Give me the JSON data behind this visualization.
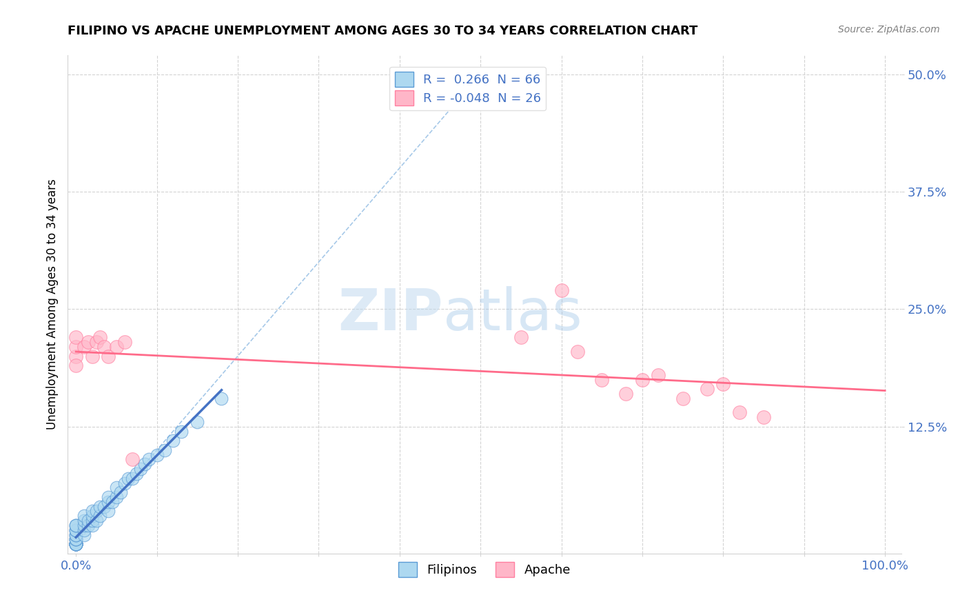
{
  "title": "FILIPINO VS APACHE UNEMPLOYMENT AMONG AGES 30 TO 34 YEARS CORRELATION CHART",
  "source": "Source: ZipAtlas.com",
  "ylabel_label": "Unemployment Among Ages 30 to 34 years",
  "xlim": [
    0,
    1.0
  ],
  "ylim": [
    0,
    0.5
  ],
  "watermark_zip": "ZIP",
  "watermark_atlas": "atlas",
  "filipino_color": "#ADD8F0",
  "apache_color": "#FFB6C8",
  "filipino_edge": "#5B9BD5",
  "apache_edge": "#FF7FA0",
  "trend_filipino_color": "#4472C4",
  "trend_apache_color": "#FF6B8A",
  "diag_color": "#9DC3E6",
  "filipinos_x": [
    0.0,
    0.0,
    0.0,
    0.0,
    0.0,
    0.0,
    0.0,
    0.0,
    0.0,
    0.0,
    0.0,
    0.0,
    0.0,
    0.0,
    0.0,
    0.0,
    0.0,
    0.0,
    0.0,
    0.0,
    0.0,
    0.0,
    0.0,
    0.0,
    0.0,
    0.0,
    0.0,
    0.0,
    0.0,
    0.0,
    0.01,
    0.01,
    0.01,
    0.01,
    0.01,
    0.015,
    0.015,
    0.02,
    0.02,
    0.02,
    0.02,
    0.025,
    0.025,
    0.03,
    0.03,
    0.035,
    0.04,
    0.04,
    0.04,
    0.045,
    0.05,
    0.05,
    0.055,
    0.06,
    0.065,
    0.07,
    0.075,
    0.08,
    0.085,
    0.09,
    0.1,
    0.11,
    0.12,
    0.13,
    0.15,
    0.18
  ],
  "filipinos_y": [
    0.0,
    0.0,
    0.0,
    0.0,
    0.0,
    0.0,
    0.0,
    0.0,
    0.0,
    0.0,
    0.0,
    0.0,
    0.0,
    0.0,
    0.0,
    0.0,
    0.0,
    0.005,
    0.005,
    0.005,
    0.005,
    0.01,
    0.01,
    0.01,
    0.015,
    0.015,
    0.015,
    0.02,
    0.02,
    0.02,
    0.01,
    0.015,
    0.02,
    0.025,
    0.03,
    0.02,
    0.025,
    0.02,
    0.025,
    0.03,
    0.035,
    0.025,
    0.035,
    0.03,
    0.04,
    0.04,
    0.035,
    0.045,
    0.05,
    0.045,
    0.05,
    0.06,
    0.055,
    0.065,
    0.07,
    0.07,
    0.075,
    0.08,
    0.085,
    0.09,
    0.095,
    0.1,
    0.11,
    0.12,
    0.13,
    0.155
  ],
  "apache_x": [
    0.0,
    0.0,
    0.0,
    0.0,
    0.01,
    0.015,
    0.02,
    0.025,
    0.03,
    0.035,
    0.04,
    0.05,
    0.06,
    0.07,
    0.55,
    0.6,
    0.62,
    0.65,
    0.68,
    0.7,
    0.72,
    0.75,
    0.78,
    0.8,
    0.82,
    0.85
  ],
  "apache_y": [
    0.2,
    0.21,
    0.22,
    0.19,
    0.21,
    0.215,
    0.2,
    0.215,
    0.22,
    0.21,
    0.2,
    0.21,
    0.215,
    0.09,
    0.22,
    0.27,
    0.205,
    0.175,
    0.16,
    0.175,
    0.18,
    0.155,
    0.165,
    0.17,
    0.14,
    0.135
  ]
}
